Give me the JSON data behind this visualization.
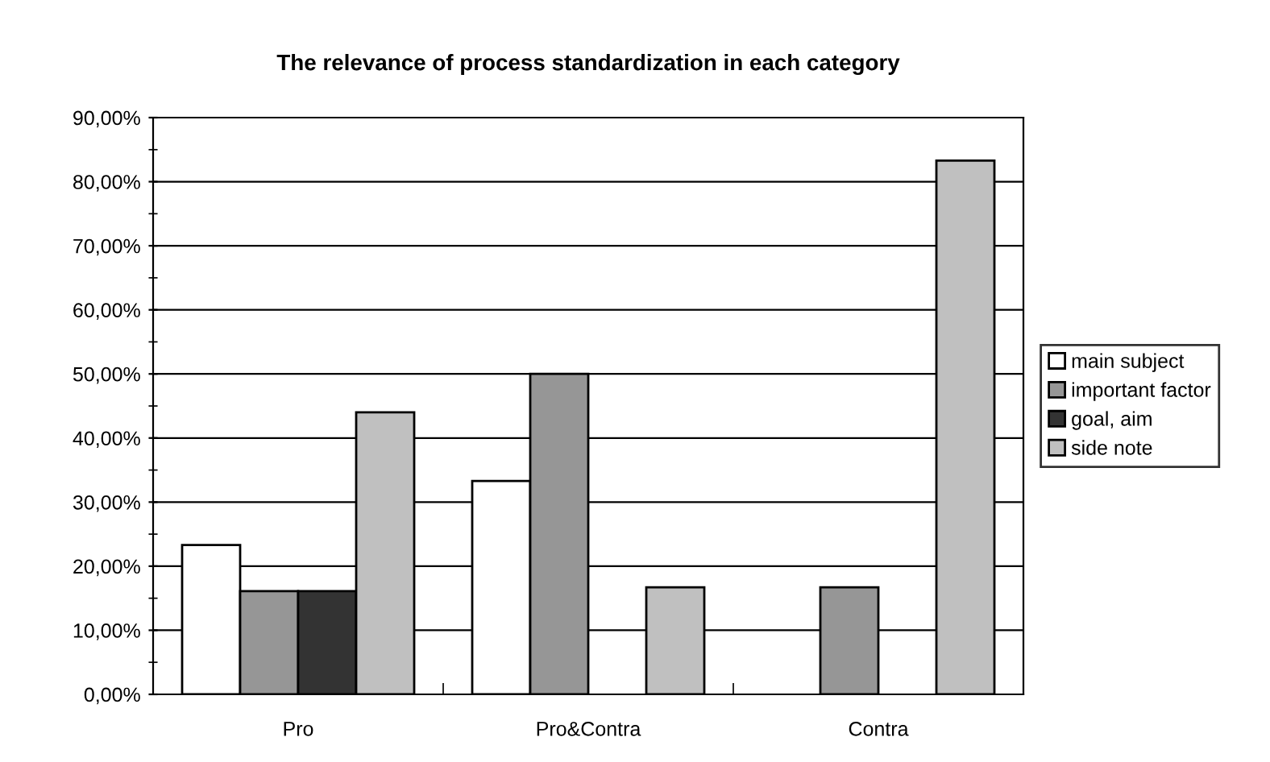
{
  "chart_data": {
    "type": "bar",
    "title": "The relevance of process standardization in each category",
    "categories": [
      "Pro",
      "Pro&Contra",
      "Contra"
    ],
    "series": [
      {
        "name": "main subject",
        "color": "#ffffff",
        "values": [
          23.3,
          33.3,
          null
        ]
      },
      {
        "name": "important factor",
        "color": "#969696",
        "values": [
          16.1,
          50.0,
          16.7
        ]
      },
      {
        "name": "goal, aim",
        "color": "#333333",
        "values": [
          16.1,
          null,
          null
        ]
      },
      {
        "name": "side note",
        "color": "#c0c0c0",
        "values": [
          44.0,
          16.7,
          83.3
        ]
      }
    ],
    "ylim": [
      0,
      90
    ],
    "yticks": [
      {
        "value": 0,
        "label": "0,00%"
      },
      {
        "value": 5,
        "label": null
      },
      {
        "value": 10,
        "label": "10,00%"
      },
      {
        "value": 15,
        "label": null
      },
      {
        "value": 20,
        "label": "20,00%"
      },
      {
        "value": 25,
        "label": null
      },
      {
        "value": 30,
        "label": "30,00%"
      },
      {
        "value": 35,
        "label": null
      },
      {
        "value": 40,
        "label": "40,00%"
      },
      {
        "value": 45,
        "label": null
      },
      {
        "value": 50,
        "label": "50,00%"
      },
      {
        "value": 55,
        "label": null
      },
      {
        "value": 60,
        "label": "60,00%"
      },
      {
        "value": 65,
        "label": null
      },
      {
        "value": 70,
        "label": "70,00%"
      },
      {
        "value": 75,
        "label": null
      },
      {
        "value": 80,
        "label": "80,00%"
      },
      {
        "value": 85,
        "label": null
      },
      {
        "value": 90,
        "label": "90,00%"
      }
    ],
    "grid": "y",
    "legend": "right"
  }
}
